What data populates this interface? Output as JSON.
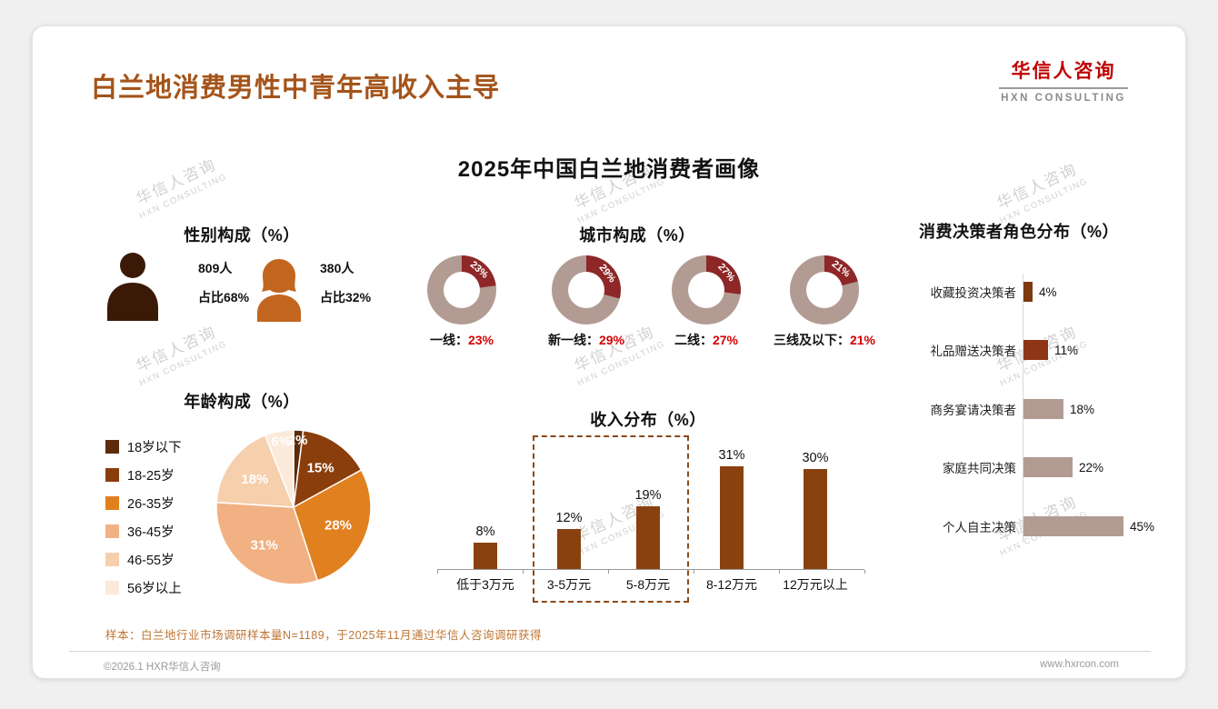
{
  "colors": {
    "title": "#a4541a",
    "logo_red": "#c00000",
    "accent_red": "#d40000",
    "donut_accent": "#8e2727",
    "donut_base": "#b29b93",
    "income_bar": "#8a4110",
    "male_icon": "#3a1a06",
    "female_icon": "#c2661f"
  },
  "page": {
    "title": "白兰地消费男性中青年高收入主导",
    "logo_cn": "华信人咨询",
    "logo_en": "HXN CONSULTING",
    "main_title": "2025年中国白兰地消费者画像",
    "sample_note": "样本：白兰地行业市场调研样本量N=1189，于2025年11月通过华信人咨询调研获得",
    "footer_left": "©2026.1 HXR华信人咨询",
    "footer_right": "www.hxrcon.com",
    "watermark_cn": "华信人咨询",
    "watermark_en": "HXN CONSULTING"
  },
  "gender": {
    "heading": "性别构成（%）",
    "male_count": "809人",
    "male_share": "占比68%",
    "female_count": "380人",
    "female_share": "占比32%"
  },
  "city": {
    "heading": "城市构成（%）",
    "donuts": [
      {
        "label": "一线：",
        "pct": "23%",
        "value": 23
      },
      {
        "label": "新一线：",
        "pct": "29%",
        "value": 29
      },
      {
        "label": "二线：",
        "pct": "27%",
        "value": 27
      },
      {
        "label": "三线及以下：",
        "pct": "21%",
        "value": 21
      }
    ]
  },
  "age": {
    "heading": "年龄构成（%）",
    "slices": [
      {
        "label": "18岁以下",
        "pct": "2%",
        "value": 2,
        "color": "#5c2b0a"
      },
      {
        "label": "18-25岁",
        "pct": "15%",
        "value": 15,
        "color": "#8a3e0c"
      },
      {
        "label": "26-35岁",
        "pct": "28%",
        "value": 28,
        "color": "#e0801f"
      },
      {
        "label": "36-45岁",
        "pct": "31%",
        "value": 31,
        "color": "#f2b183"
      },
      {
        "label": "46-55岁",
        "pct": "18%",
        "value": 18,
        "color": "#f6cfac"
      },
      {
        "label": "56岁以上",
        "pct": "6%",
        "value": 6,
        "color": "#fbeada"
      }
    ]
  },
  "income": {
    "heading": "收入分布（%）",
    "bars": [
      {
        "label": "低于3万元",
        "pct": "8%",
        "value": 8
      },
      {
        "label": "3-5万元",
        "pct": "12%",
        "value": 12
      },
      {
        "label": "5-8万元",
        "pct": "19%",
        "value": 19
      },
      {
        "label": "8-12万元",
        "pct": "31%",
        "value": 31
      },
      {
        "label": "12万元以上",
        "pct": "30%",
        "value": 30
      }
    ]
  },
  "decision": {
    "heading": "消费决策者角色分布（%）",
    "bars": [
      {
        "label": "收藏投资决策者",
        "pct": "4%",
        "value": 4,
        "color": "#7d3a0e"
      },
      {
        "label": "礼品赠送决策者",
        "pct": "11%",
        "value": 11,
        "color": "#8e3517"
      },
      {
        "label": "商务宴请决策者",
        "pct": "18%",
        "value": 18,
        "color": "#b29b93"
      },
      {
        "label": "家庭共同决策",
        "pct": "22%",
        "value": 22,
        "color": "#b29b93"
      },
      {
        "label": "个人自主决策",
        "pct": "45%",
        "value": 45,
        "color": "#b29b93"
      }
    ]
  },
  "chart_data": [
    {
      "type": "pie",
      "title": "性别构成（%）",
      "categories": [
        "男",
        "女"
      ],
      "values": [
        68,
        32
      ],
      "counts": [
        809,
        380
      ]
    },
    {
      "type": "pie",
      "subtype": "donut-group",
      "title": "城市构成（%）",
      "categories": [
        "一线",
        "新一线",
        "二线",
        "三线及以下"
      ],
      "values": [
        23,
        29,
        27,
        21
      ]
    },
    {
      "type": "pie",
      "title": "年龄构成（%）",
      "categories": [
        "18岁以下",
        "18-25岁",
        "26-35岁",
        "36-45岁",
        "46-55岁",
        "56岁以上"
      ],
      "values": [
        2,
        15,
        28,
        31,
        18,
        6
      ],
      "legend_position": "left"
    },
    {
      "type": "bar",
      "title": "收入分布（%）",
      "categories": [
        "低于3万元",
        "3-5万元",
        "5-8万元",
        "8-12万元",
        "12万元以上"
      ],
      "values": [
        8,
        12,
        19,
        31,
        30
      ],
      "ylim": [
        0,
        35
      ],
      "grid": false,
      "annotation": "dashed box highlighting 3-5万元 and 5-8万元"
    },
    {
      "type": "bar",
      "orientation": "horizontal",
      "title": "消费决策者角色分布（%）",
      "categories": [
        "收藏投资决策者",
        "礼品赠送决策者",
        "商务宴请决策者",
        "家庭共同决策",
        "个人自主决策"
      ],
      "values": [
        4,
        11,
        18,
        22,
        45
      ],
      "xlim": [
        0,
        50
      ],
      "grid": false
    }
  ]
}
